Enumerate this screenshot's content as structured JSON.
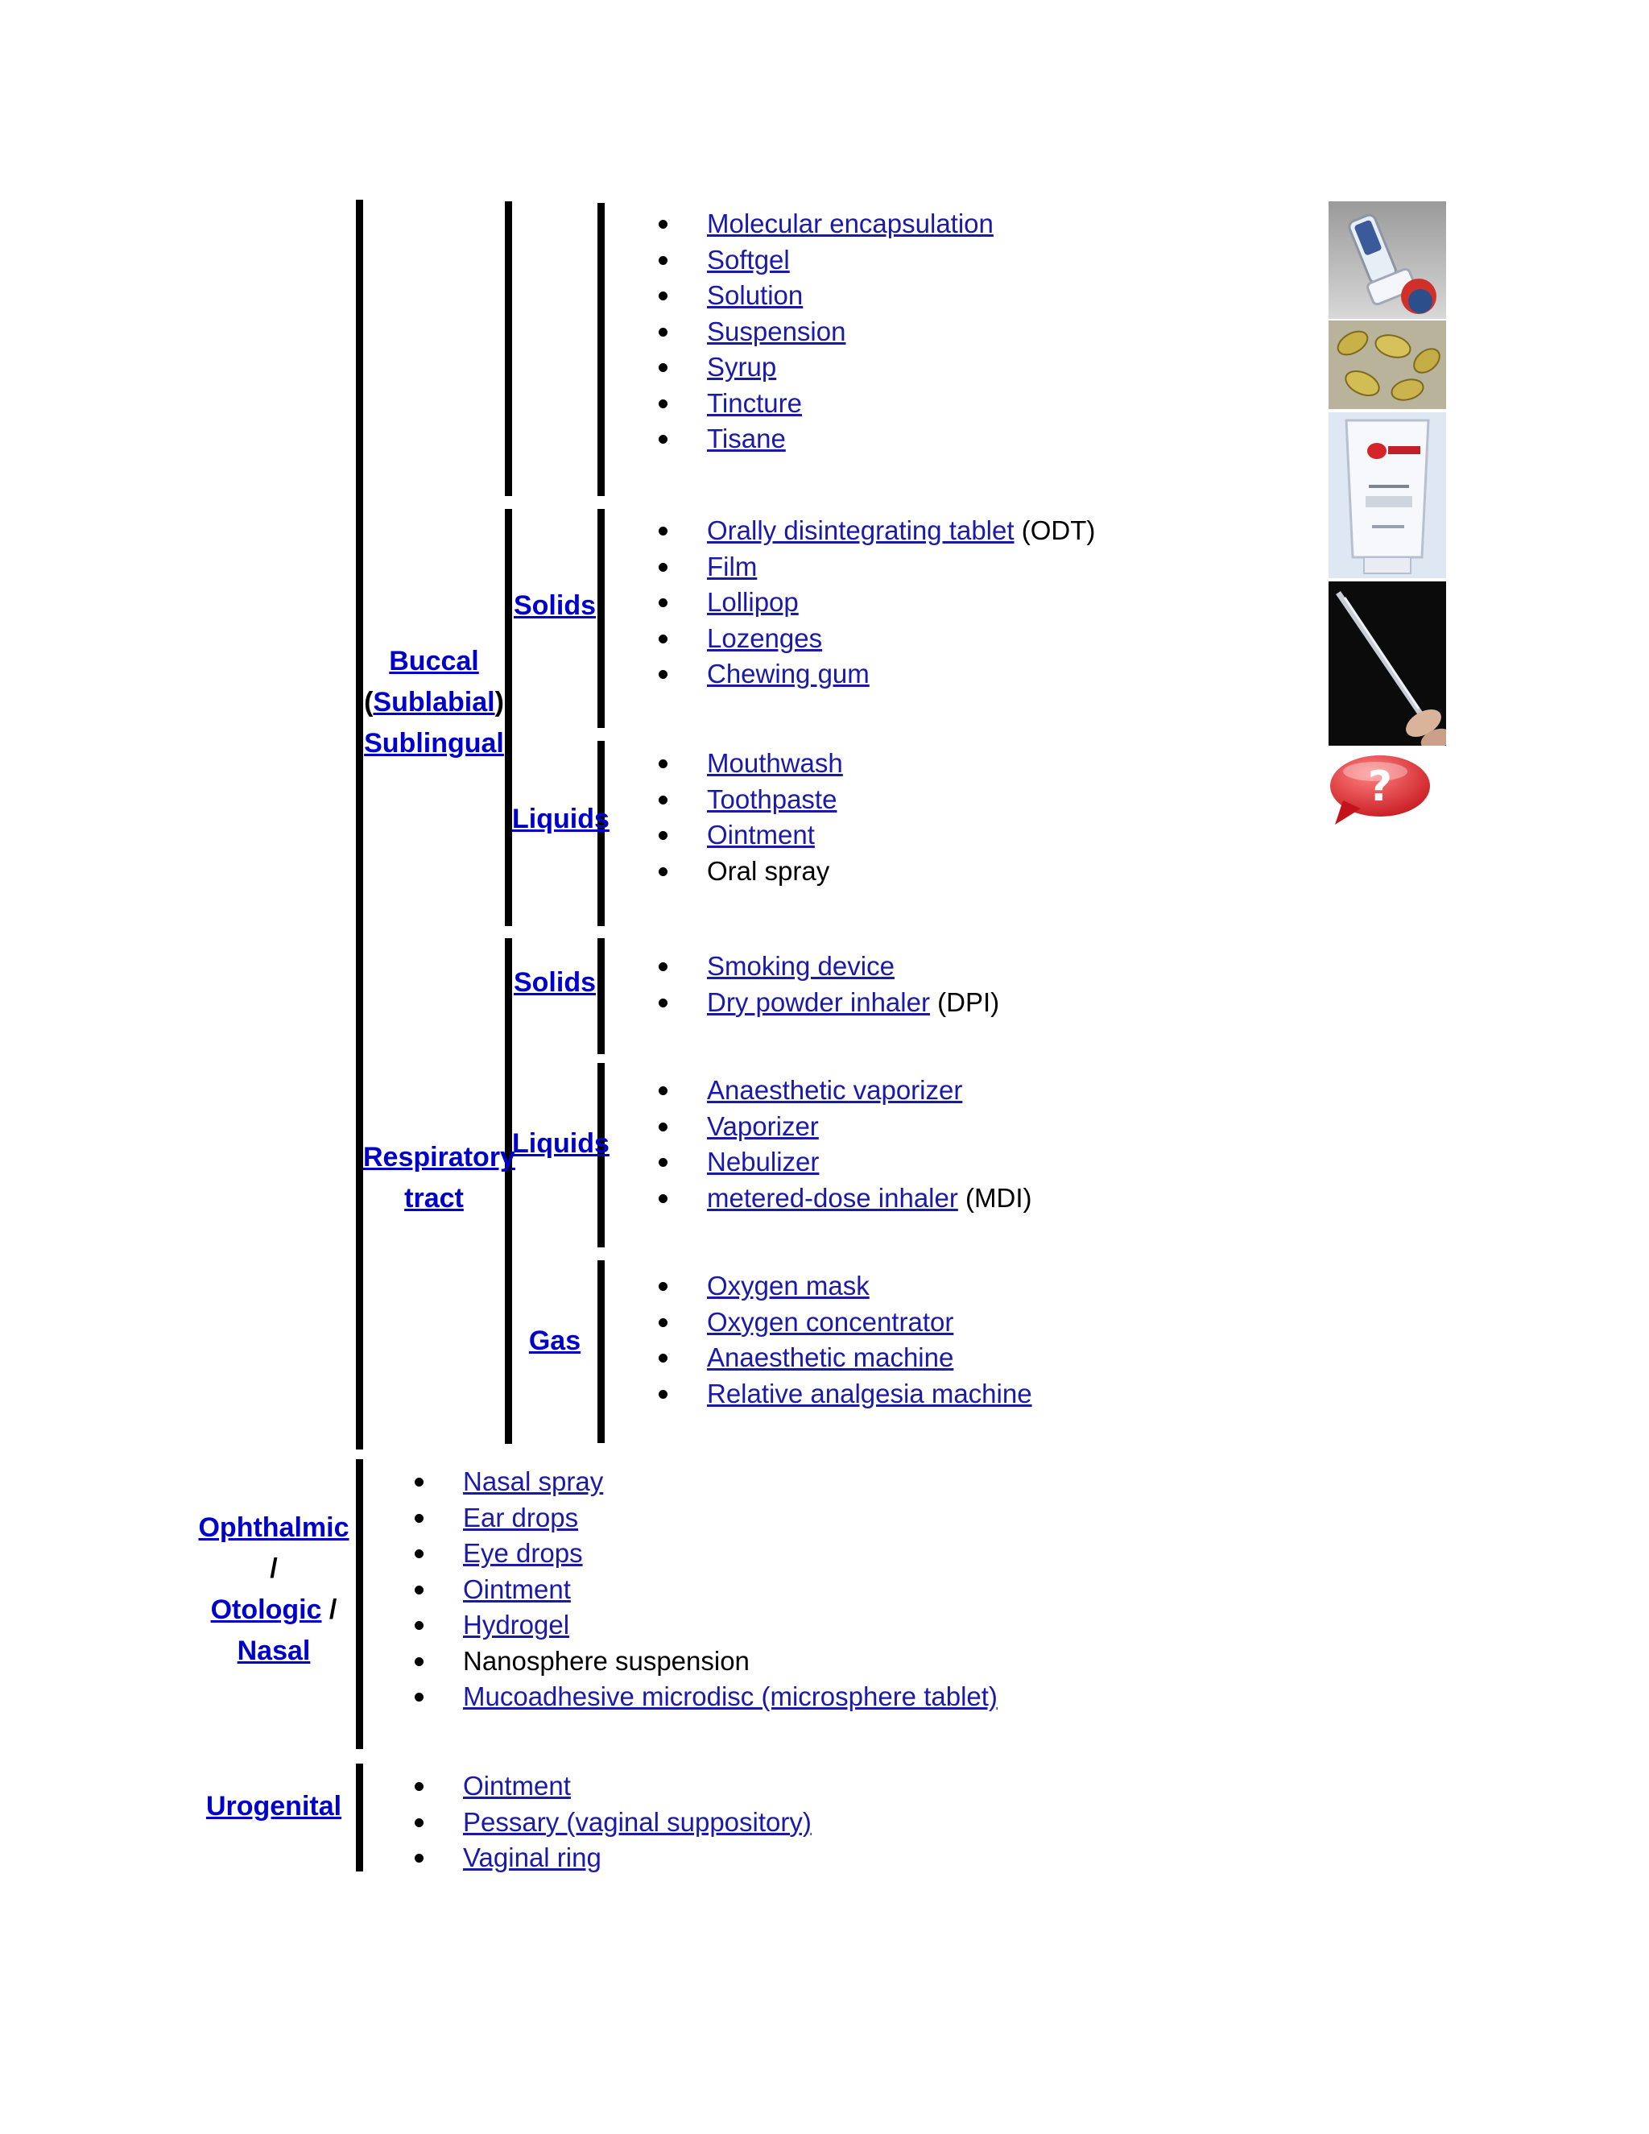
{
  "buccal_label": {
    "part1": "Buccal",
    "open": "(",
    "part2": "Sublabial",
    "close": ")",
    "part3": "Sublingual"
  },
  "respiratory_label": {
    "line1": "Respiratory",
    "line2": "tract"
  },
  "eye_label": {
    "part1": "Ophthalmic",
    "sep1": "/",
    "part2": "Otologic",
    "sep2": " /",
    "part3": "Nasal"
  },
  "uro_label": "Urogenital",
  "sub": {
    "solids": "Solids",
    "liquids": "Liquids",
    "gas": "Gas"
  },
  "lists": {
    "oral_liquids": [
      "Molecular encapsulation",
      "Softgel",
      "Solution",
      "Suspension",
      "Syrup",
      "Tincture",
      "Tisane"
    ],
    "buccal_solids": {
      "odt_link": "Orally disintegrating tablet",
      "odt_suffix": " (ODT)",
      "items": [
        "Film",
        "Lollipop",
        "Lozenges",
        "Chewing gum"
      ]
    },
    "buccal_liquids": {
      "links": [
        "Mouthwash",
        "Toothpaste",
        "Ointment"
      ],
      "plain": "Oral spray"
    },
    "resp_solids": {
      "link1": "Smoking device",
      "link2": "Dry powder inhaler",
      "suffix2": " (DPI)"
    },
    "resp_liquids": {
      "links": [
        "Anaesthetic vaporizer",
        "Vaporizer",
        "Nebulizer"
      ],
      "mdi_link": "metered-dose inhaler",
      "mdi_suffix": " (MDI)"
    },
    "resp_gas": [
      "Oxygen mask",
      "Oxygen concentrator",
      "Anaesthetic machine",
      "Relative analgesia machine"
    ],
    "eye": {
      "links_a": [
        "Nasal spray",
        "Ear drops",
        "Eye drops",
        "Ointment",
        "Hydrogel"
      ],
      "plain": "Nanosphere suspension",
      "last": "Mucoadhesive microdisc (microsphere tablet)"
    },
    "uro": [
      "Ointment",
      "Pessary (vaginal suppository)",
      "Vaginal ring"
    ]
  },
  "images": [
    "inhaler-photo-icon",
    "softgel-capsules-photo-icon",
    "ointment-tube-photo-icon",
    "syringe-photo-icon",
    "question-mark-bubble-icon"
  ]
}
